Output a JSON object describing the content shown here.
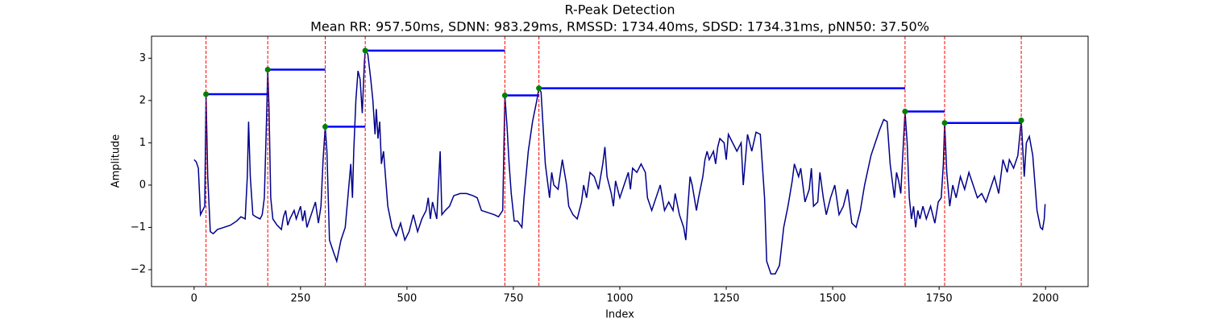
{
  "chart_data": {
    "type": "line",
    "title": "R-Peak Detection",
    "subtitle": "Mean RR: 957.50ms, SDNN: 983.29ms, RMSSD: 1734.40ms, SDSD: 1734.31ms, pNN50: 37.50%",
    "x_label": "Index",
    "y_label": "Amplitude",
    "color": "#00008b",
    "x": [
      0,
      5,
      10,
      15,
      20,
      25,
      28,
      32,
      38,
      45,
      55,
      70,
      85,
      100,
      110,
      120,
      125,
      128,
      132,
      138,
      145,
      155,
      160,
      165,
      170,
      173,
      176,
      180,
      185,
      195,
      205,
      210,
      215,
      220,
      225,
      235,
      240,
      250,
      255,
      260,
      265,
      275,
      285,
      292,
      298,
      303,
      308,
      312,
      318,
      328,
      335,
      345,
      355,
      362,
      368,
      372,
      375,
      380,
      385,
      390,
      395,
      400,
      402,
      408,
      415,
      420,
      425,
      428,
      432,
      436,
      440,
      445,
      455,
      465,
      475,
      485,
      495,
      505,
      515,
      525,
      535,
      545,
      550,
      555,
      560,
      570,
      578,
      582,
      590,
      600,
      610,
      625,
      640,
      655,
      665,
      675,
      690,
      705,
      715,
      725,
      730,
      735,
      740,
      745,
      752,
      760,
      770,
      775,
      785,
      795,
      805,
      810,
      815,
      825,
      835,
      840,
      845,
      855,
      865,
      875,
      880,
      890,
      900,
      910,
      915,
      922,
      930,
      940,
      950,
      960,
      965,
      970,
      980,
      985,
      990,
      1000,
      1010,
      1020,
      1025,
      1030,
      1040,
      1050,
      1060,
      1065,
      1075,
      1085,
      1095,
      1105,
      1115,
      1125,
      1130,
      1140,
      1150,
      1155,
      1160,
      1165,
      1170,
      1180,
      1185,
      1195,
      1200,
      1205,
      1210,
      1220,
      1225,
      1230,
      1235,
      1245,
      1250,
      1255,
      1265,
      1275,
      1285,
      1290,
      1295,
      1300,
      1310,
      1320,
      1330,
      1340,
      1345,
      1355,
      1365,
      1375,
      1385,
      1395,
      1405,
      1410,
      1420,
      1425,
      1435,
      1445,
      1450,
      1455,
      1465,
      1470,
      1478,
      1485,
      1495,
      1505,
      1515,
      1525,
      1535,
      1545,
      1555,
      1565,
      1575,
      1590,
      1600,
      1610,
      1620,
      1628,
      1635,
      1645,
      1650,
      1655,
      1660,
      1670,
      1675,
      1680,
      1685,
      1690,
      1695,
      1700,
      1705,
      1712,
      1720,
      1730,
      1740,
      1748,
      1755,
      1760,
      1763,
      1768,
      1775,
      1782,
      1790,
      1800,
      1810,
      1820,
      1830,
      1840,
      1850,
      1860,
      1870,
      1880,
      1890,
      1900,
      1910,
      1915,
      1925,
      1935,
      1943,
      1950,
      1955,
      1962,
      1970,
      1980,
      1988,
      1993,
      1997,
      1999
    ],
    "values": [
      0.6,
      0.55,
      0.4,
      -0.7,
      -0.6,
      -0.5,
      2.15,
      0.2,
      -1.1,
      -1.15,
      -1.05,
      -1.0,
      -0.95,
      -0.85,
      -0.75,
      -0.8,
      0.2,
      1.5,
      0.2,
      -0.7,
      -0.75,
      -0.8,
      -0.7,
      -0.3,
      1.5,
      2.73,
      1.8,
      -0.3,
      -0.8,
      -0.95,
      -1.05,
      -0.75,
      -0.6,
      -0.95,
      -0.8,
      -0.6,
      -0.8,
      -0.5,
      -0.85,
      -0.6,
      -1.0,
      -0.7,
      -0.4,
      -0.9,
      -0.5,
      0.6,
      1.38,
      0.8,
      -1.3,
      -1.6,
      -1.8,
      -1.3,
      -1.0,
      -0.2,
      0.5,
      -0.3,
      0.8,
      2.0,
      2.7,
      2.5,
      1.7,
      2.9,
      3.18,
      3.1,
      2.5,
      2.0,
      1.2,
      1.8,
      1.1,
      1.5,
      0.5,
      0.8,
      -0.5,
      -1.0,
      -1.2,
      -0.9,
      -1.3,
      -1.1,
      -0.7,
      -1.1,
      -0.8,
      -0.6,
      -0.3,
      -0.8,
      -0.4,
      -0.8,
      0.8,
      -0.7,
      -0.6,
      -0.5,
      -0.25,
      -0.2,
      -0.2,
      -0.25,
      -0.3,
      -0.6,
      -0.65,
      -0.7,
      -0.75,
      -0.6,
      2.12,
      1.4,
      0.5,
      -0.2,
      -0.85,
      -0.85,
      -1.0,
      -0.3,
      0.8,
      1.5,
      2.0,
      2.29,
      2.2,
      0.5,
      -0.3,
      0.3,
      0.0,
      -0.1,
      0.6,
      0.0,
      -0.5,
      -0.7,
      -0.8,
      -0.4,
      0.0,
      -0.3,
      0.3,
      0.2,
      -0.1,
      0.5,
      0.9,
      0.2,
      -0.2,
      -0.5,
      0.1,
      -0.3,
      0.0,
      0.3,
      -0.1,
      0.4,
      0.3,
      0.5,
      0.3,
      -0.3,
      -0.6,
      -0.3,
      0.0,
      -0.6,
      -0.4,
      -0.6,
      -0.2,
      -0.7,
      -1.0,
      -1.3,
      -0.5,
      0.2,
      0.0,
      -0.6,
      -0.3,
      0.2,
      0.6,
      0.8,
      0.6,
      0.8,
      0.5,
      0.9,
      1.1,
      1.0,
      0.6,
      1.2,
      1.0,
      0.8,
      1.0,
      0.0,
      0.6,
      1.2,
      0.8,
      1.25,
      1.2,
      -0.3,
      -1.8,
      -2.1,
      -2.1,
      -1.9,
      -1.0,
      -0.5,
      0.1,
      0.5,
      0.2,
      0.4,
      -0.4,
      -0.1,
      0.4,
      -0.5,
      -0.4,
      0.3,
      -0.3,
      -0.7,
      -0.3,
      0.0,
      -0.7,
      -0.5,
      -0.1,
      -0.9,
      -1.0,
      -0.6,
      0.0,
      0.7,
      1.0,
      1.3,
      1.55,
      1.5,
      0.5,
      -0.3,
      0.3,
      0.1,
      -0.2,
      1.74,
      1.0,
      -0.3,
      -0.8,
      -0.5,
      -1.0,
      -0.6,
      -0.8,
      -0.5,
      -0.8,
      -0.5,
      -0.9,
      -0.4,
      -0.3,
      0.5,
      1.47,
      0.3,
      -0.5,
      0.0,
      -0.3,
      0.2,
      -0.1,
      0.3,
      0.0,
      -0.3,
      -0.2,
      -0.4,
      -0.1,
      0.2,
      -0.2,
      0.6,
      0.3,
      0.6,
      0.4,
      0.7,
      1.53,
      0.2,
      1.0,
      1.15,
      0.7,
      -0.6,
      -1.0,
      -1.05,
      -0.8,
      -0.45
    ],
    "peaks": {
      "x": [
        28,
        173,
        308,
        402,
        730,
        810,
        1670,
        1763,
        1943
      ],
      "values": [
        2.15,
        2.73,
        1.38,
        3.18,
        2.12,
        2.29,
        1.74,
        1.47,
        1.53
      ],
      "color": "green"
    },
    "rr_color": "blue",
    "vline_color": "red",
    "xlim": [
      -100,
      2100
    ],
    "ylim": [
      -2.4,
      3.52
    ],
    "xticks": [
      0,
      250,
      500,
      750,
      1000,
      1250,
      1500,
      1750,
      2000
    ],
    "yticks": [
      {
        "value": -2,
        "label": "−2"
      },
      {
        "value": -1,
        "label": "−1"
      },
      0,
      1,
      2,
      3
    ]
  }
}
